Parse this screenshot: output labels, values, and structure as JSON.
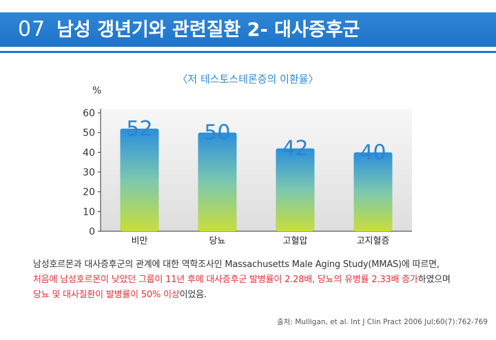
{
  "header": {
    "number": "07",
    "title": "남성 갱년기와 관련질환 2- 대사증후군"
  },
  "chart_data": {
    "type": "bar",
    "title": "〈저 테스토스테론증의 이환율〉",
    "ylabel": "%",
    "xlabel": "",
    "categories": [
      "비만",
      "당뇨",
      "고혈압",
      "고지혈증"
    ],
    "values": [
      52,
      50,
      42,
      40
    ],
    "data_labels": [
      "52",
      "50",
      "42",
      "40"
    ],
    "ylim": [
      0,
      60
    ],
    "yticks": [
      "0",
      "10",
      "20",
      "30",
      "40",
      "50",
      "60"
    ],
    "grid": false,
    "bar_gradient": {
      "top": "#2a8fdc",
      "middle": "#7cc8b0",
      "bottom": "#c8de3a"
    },
    "label_color": "#2d84cc"
  },
  "description": {
    "line1": "남성호르몬과 대사증후군의 관계에 대한 역학조사인 Massachusetts Male Aging Study(MMAS)에 따르면,",
    "line2_hl": "처음에 남성호르몬이 낮았던 그룹이 11년 후에 대사증후군 발병률이 2.28배, 당뇨의 유병률 2.33배 증가",
    "line2_tail": "하였으며",
    "line3_hl": "당뇨 및 대사질환이 발병률이 50% 이상",
    "line3_tail": "이었음."
  },
  "source": "출처: Mulligan, et al. Int J Clin Pract 2006 Jul;60(7):762-769",
  "colors": {
    "header_blue": "#1f73c8",
    "highlight_red": "#e0303a",
    "subtitle_blue": "#2d8ad2"
  }
}
